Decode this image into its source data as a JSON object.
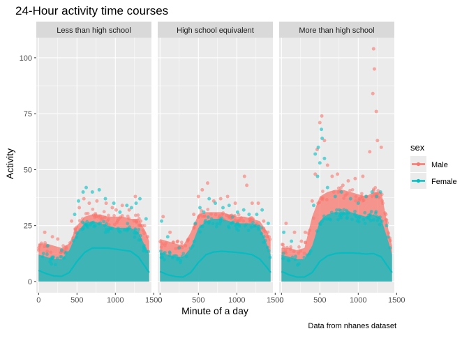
{
  "chart_data": {
    "type": "scatter",
    "title": "24-Hour activity time courses",
    "xlabel": "Minute of a day",
    "ylabel": "Activity",
    "caption": "Data from nhanes dataset",
    "facets": [
      "Less than high school",
      "High school equivalent",
      "More than high school"
    ],
    "xlim": [
      -30,
      1470
    ],
    "ylim": [
      -5,
      109
    ],
    "x_ticks": [
      0,
      500,
      1000,
      1500
    ],
    "x_tick_labels": [
      "0",
      "500",
      "1000",
      "1500"
    ],
    "y_ticks": [
      0,
      25,
      50,
      75,
      100
    ],
    "y_tick_labels": [
      "0",
      "25",
      "50",
      "75",
      "100"
    ],
    "grid": true,
    "legend": {
      "title": "sex",
      "position": "right",
      "entries": [
        {
          "name": "Male",
          "color": "#F8766D"
        },
        {
          "name": "Female",
          "color": "#00BFC4"
        }
      ]
    },
    "series": [
      {
        "name": "Male",
        "color": "#F8766D",
        "bands": [
          {
            "facet": "Less than high school",
            "x": [
              0,
              100,
              200,
              300,
              400,
              500,
              600,
              700,
              800,
              900,
              1000,
              1100,
              1200,
              1300,
              1400,
              1440
            ],
            "ymax": [
              17,
              17,
              16,
              15,
              17,
              25,
              29,
              30,
              30,
              29,
              29,
              29,
              28,
              28,
              22,
              18
            ]
          },
          {
            "facet": "High school equivalent",
            "x": [
              0,
              100,
              200,
              300,
              400,
              500,
              600,
              700,
              800,
              900,
              1000,
              1100,
              1200,
              1300,
              1400,
              1440
            ],
            "ymax": [
              19,
              18,
              17,
              16,
              22,
              30,
              31,
              31,
              31,
              30,
              29,
              29,
              28,
              27,
              22,
              18
            ]
          },
          {
            "facet": "More than high school",
            "x": [
              0,
              100,
              200,
              300,
              400,
              500,
              600,
              700,
              800,
              900,
              1000,
              1100,
              1200,
              1300,
              1400,
              1440
            ],
            "ymax": [
              15,
              15,
              14,
              15,
              29,
              38,
              40,
              41,
              41,
              40,
              39,
              38,
              40,
              40,
              22,
              16
            ]
          }
        ],
        "outliers": [
          {
            "facet": "Less than high school",
            "x": [
              80,
              180,
              250,
              430,
              530,
              590,
              660,
              760,
              880,
              960,
              1010,
              1090,
              1180,
              1260,
              1330,
              1420
            ],
            "y": [
              22,
              20,
              19,
              27,
              33,
              37,
              35,
              36,
              35,
              33,
              32,
              34,
              32,
              38,
              27,
              20
            ]
          },
          {
            "facet": "High school equivalent",
            "x": [
              40,
              130,
              230,
              330,
              440,
              500,
              550,
              620,
              700,
              790,
              880,
              980,
              1100,
              1130,
              1200,
              1280,
              1350,
              1420
            ],
            "y": [
              29,
              22,
              18,
              16,
              30,
              38,
              41,
              44,
              36,
              37,
              38,
              35,
              47,
              43,
              35,
              35,
              27,
              20
            ]
          },
          {
            "facet": "More than high school",
            "x": [
              60,
              170,
              260,
              310,
              400,
              440,
              465,
              500,
              525,
              560,
              600,
              660,
              730,
              800,
              870,
              960,
              1060,
              1150,
              1190,
              1200,
              1210,
              1235,
              1250,
              1300,
              1360
            ],
            "y": [
              26,
              22,
              18,
              22,
              36,
              48,
              59,
              71,
              74,
              63,
              52,
              47,
              48,
              43,
              45,
              46,
              47,
              58,
              84,
              104,
              95,
              76,
              63,
              60,
              30
            ]
          }
        ],
        "smooth": [
          {
            "facet": "Less than high school",
            "x": [
              0,
              100,
              200,
              300,
              400,
              500,
              600,
              700,
              800,
              900,
              1000,
              1100,
              1200,
              1300,
              1400,
              1440
            ],
            "y": [
              5,
              3.5,
              2.5,
              2.3,
              4,
              9,
              13,
              15,
              15,
              15,
              14.5,
              14,
              13.5,
              11,
              6,
              4
            ]
          },
          {
            "facet": "High school equivalent",
            "x": [
              0,
              100,
              200,
              300,
              400,
              500,
              600,
              700,
              800,
              900,
              1000,
              1100,
              1200,
              1300,
              1400,
              1440
            ],
            "y": [
              4.5,
              3,
              2.2,
              2,
              4,
              8.5,
              12,
              13.2,
              13.5,
              13.3,
              13,
              12.6,
              12,
              10,
              6,
              4
            ]
          },
          {
            "facet": "More than high school",
            "x": [
              0,
              100,
              200,
              300,
              400,
              500,
              600,
              700,
              800,
              900,
              1000,
              1100,
              1200,
              1300,
              1400,
              1440
            ],
            "y": [
              4.5,
              3,
              2,
              2,
              4,
              9,
              11.5,
              12.5,
              12.8,
              12.8,
              12.6,
              12.3,
              12.5,
              11,
              6,
              4
            ]
          }
        ]
      },
      {
        "name": "Female",
        "color": "#00BFC4",
        "bands": [
          {
            "facet": "Less than high school",
            "x": [
              0,
              100,
              200,
              300,
              400,
              500,
              600,
              700,
              800,
              900,
              1000,
              1100,
              1200,
              1300,
              1400,
              1440
            ],
            "ymax": [
              12,
              11,
              10,
              10,
              14,
              22,
              26,
              27,
              26,
              25,
              24,
              24,
              24,
              22,
              15,
              12
            ]
          },
          {
            "facet": "High school equivalent",
            "x": [
              0,
              100,
              200,
              300,
              400,
              500,
              600,
              700,
              800,
              900,
              1000,
              1100,
              1200,
              1300,
              1400,
              1440
            ],
            "ymax": [
              13,
              12,
              11,
              11,
              15,
              24,
              27,
              28,
              28,
              27,
              26,
              26,
              26,
              24,
              16,
              12
            ]
          },
          {
            "facet": "More than high school",
            "x": [
              0,
              100,
              200,
              300,
              400,
              500,
              600,
              700,
              800,
              900,
              1000,
              1100,
              1200,
              1300,
              1400,
              1440
            ],
            "ymax": [
              12,
              11,
              10,
              10,
              16,
              27,
              30,
              31,
              31,
              31,
              30,
              29,
              30,
              28,
              17,
              12
            ]
          }
        ],
        "outliers": [
          {
            "facet": "Less than high school",
            "x": [
              120,
              300,
              470,
              520,
              580,
              620,
              700,
              790,
              870,
              980,
              1060,
              1150,
              1210,
              1270,
              1320,
              1400
            ],
            "y": [
              16,
              14,
              30,
              36,
              40,
              42,
              40,
              41,
              37,
              35,
              31,
              34,
              33,
              35,
              37,
              28
            ]
          },
          {
            "facet": "High school equivalent",
            "x": [
              20,
              100,
              250,
              460,
              520,
              570,
              640,
              720,
              820,
              900,
              1010,
              1090,
              1160,
              1260,
              1330,
              1410
            ],
            "y": [
              27,
              20,
              15,
              26,
              33,
              31,
              37,
              35,
              33,
              34,
              31,
              32,
              30,
              30,
              32,
              26
            ]
          },
          {
            "facet": "More than high school",
            "x": [
              30,
              130,
              420,
              440,
              470,
              480,
              500,
              520,
              530,
              560,
              600,
              700,
              780,
              900,
              1000,
              1100,
              1180,
              1240,
              1290,
              1370
            ],
            "y": [
              22,
              18,
              34,
              57,
              47,
              60,
              53,
              68,
              64,
              55,
              42,
              38,
              40,
              37,
              35,
              38,
              40,
              38,
              40,
              25
            ]
          }
        ],
        "smooth": [
          {
            "facet": "Less than high school",
            "x": [
              0,
              100,
              200,
              300,
              400,
              500,
              600,
              700,
              800,
              900,
              1000,
              1100,
              1200,
              1300,
              1400,
              1440
            ],
            "y": [
              5,
              3.5,
              2.5,
              2.3,
              4,
              9,
              13,
              15,
              15,
              15,
              14.5,
              14,
              13.5,
              11,
              6,
              4
            ]
          },
          {
            "facet": "High school equivalent",
            "x": [
              0,
              100,
              200,
              300,
              400,
              500,
              600,
              700,
              800,
              900,
              1000,
              1100,
              1200,
              1300,
              1400,
              1440
            ],
            "y": [
              4.5,
              3,
              2.2,
              2,
              4,
              8.5,
              12,
              13.2,
              13.5,
              13.3,
              13,
              12.6,
              12,
              10,
              6,
              4
            ]
          },
          {
            "facet": "More than high school",
            "x": [
              0,
              100,
              200,
              300,
              400,
              500,
              600,
              700,
              800,
              900,
              1000,
              1100,
              1200,
              1300,
              1400,
              1440
            ],
            "y": [
              4.5,
              3,
              2,
              2,
              4,
              9,
              11.5,
              12.5,
              12.8,
              12.8,
              12.6,
              12.3,
              12.5,
              11,
              6,
              4
            ]
          }
        ]
      }
    ]
  }
}
